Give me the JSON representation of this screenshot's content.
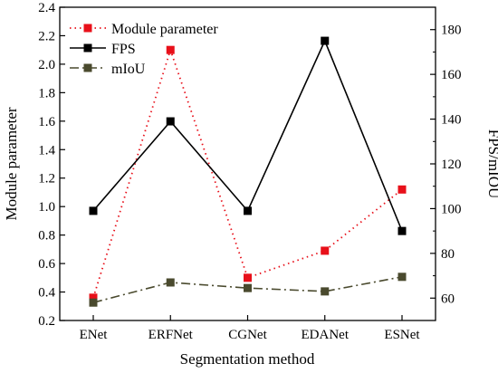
{
  "chart_data": {
    "type": "line",
    "categories": [
      "ENet",
      "ERFNet",
      "CGNet",
      "EDANet",
      "ESNet"
    ],
    "xlabel": "Segmentation method",
    "ylabel_left": "Module parameter",
    "ylabel_right": "FPS/mIOU",
    "ylim_left": [
      0.2,
      2.4
    ],
    "yticks_left": [
      "0.2",
      "0.4",
      "0.6",
      "0.8",
      "1.0",
      "1.2",
      "1.4",
      "1.6",
      "1.8",
      "2.0",
      "2.2",
      "2.4"
    ],
    "ylim_right": [
      50,
      190
    ],
    "yticks_right": [
      "60",
      "80",
      "100",
      "120",
      "140",
      "160",
      "180"
    ],
    "grid": false,
    "legend_position": "top-left",
    "series": [
      {
        "name": "Module parameter",
        "axis": "left",
        "values": [
          0.36,
          2.1,
          0.5,
          0.69,
          1.12
        ],
        "color": "#e8101a",
        "style": "dotted",
        "marker": "square"
      },
      {
        "name": "FPS",
        "axis": "right",
        "values": [
          99,
          139,
          99,
          175,
          90
        ],
        "color": "#000000",
        "style": "solid",
        "marker": "square"
      },
      {
        "name": "mIoU",
        "axis": "right",
        "values": [
          58,
          67,
          64.5,
          63,
          69.5
        ],
        "color": "#4a4a2e",
        "style": "dashdot",
        "marker": "square"
      }
    ]
  }
}
